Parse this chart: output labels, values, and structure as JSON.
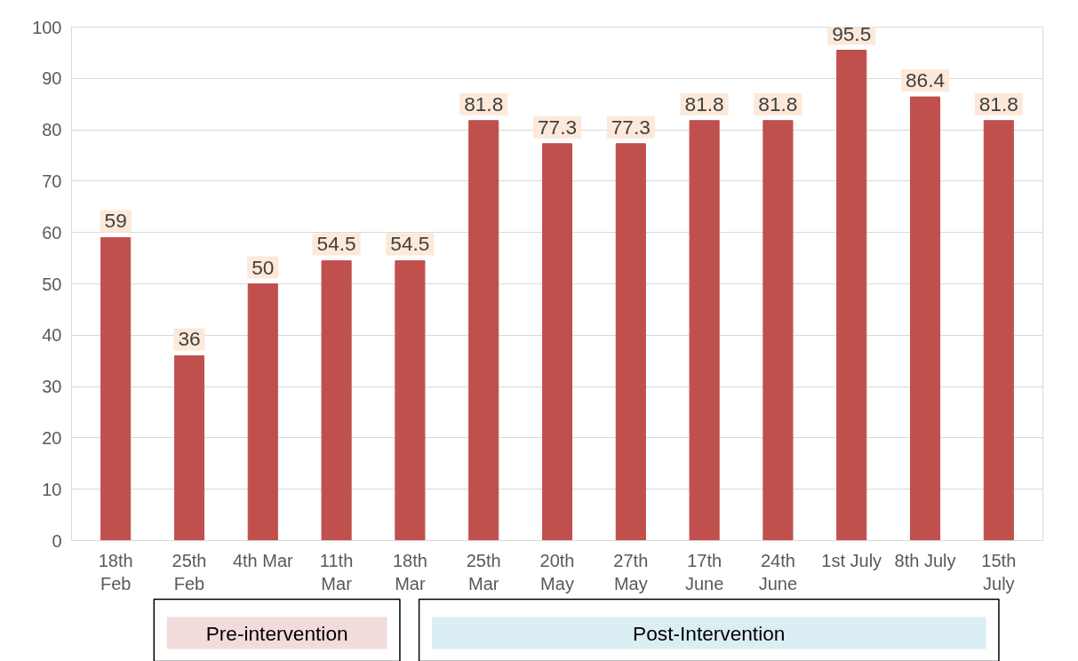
{
  "chart_data": {
    "type": "bar",
    "categories": [
      "18th\nFeb",
      "25th\nFeb",
      "4th Mar",
      "11th\nMar",
      "18th\nMar",
      "25th\nMar",
      "20th\nMay",
      "27th\nMay",
      "17th\nJune",
      "24th\nJune",
      "1st July",
      "8th July",
      "15th\nJuly"
    ],
    "values": [
      59,
      36,
      50,
      54.5,
      54.5,
      81.8,
      77.3,
      77.3,
      81.8,
      81.8,
      95.5,
      86.4,
      81.8
    ],
    "color": "#c0504d",
    "ylim": [
      0,
      100
    ],
    "yticks": [
      0,
      10,
      20,
      30,
      40,
      50,
      60,
      70,
      80,
      90,
      100
    ],
    "grid": "y",
    "data_labels": true,
    "annotations": [
      "Pre-intervention",
      "Post-Intervention"
    ]
  }
}
